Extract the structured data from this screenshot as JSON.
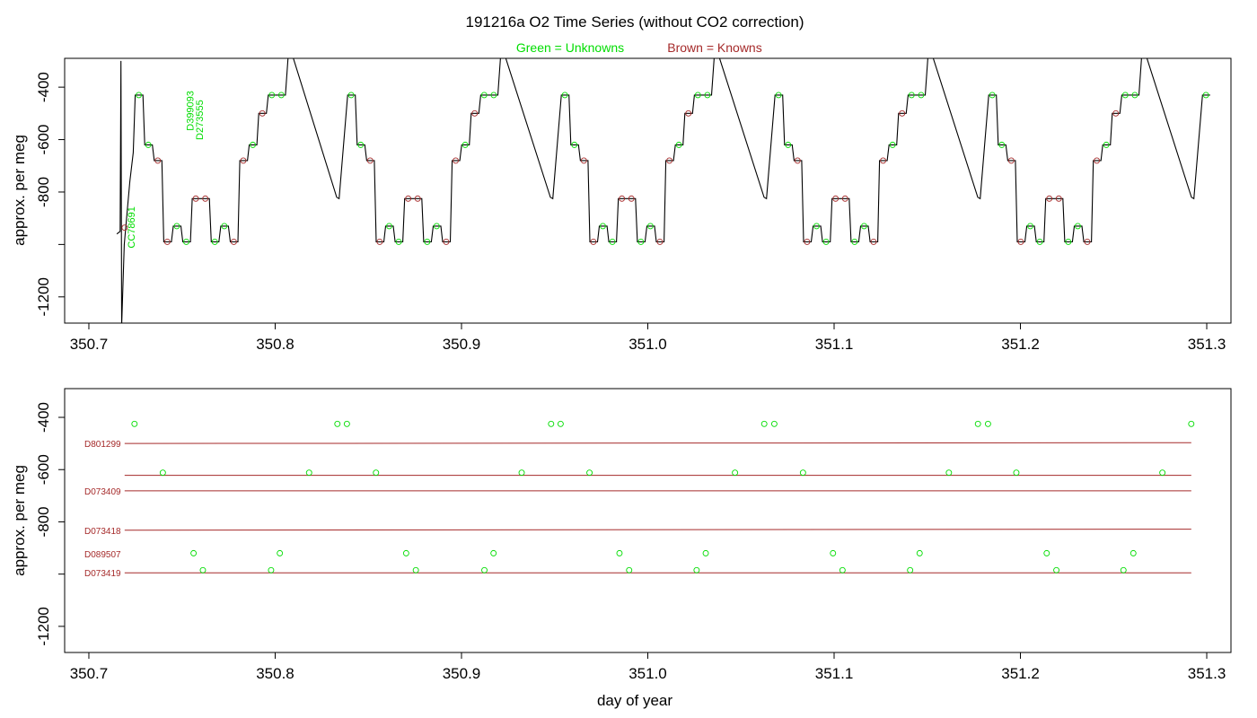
{
  "chart_data": [
    {
      "type": "line",
      "title": "191216a   O2 Time Series (without CO2 correction)",
      "legend_green": "Green = Unknowns",
      "legend_brown": "Brown = Knowns",
      "xlabel": "",
      "ylabel": "approx. per meg",
      "xlim": [
        350.687,
        351.313
      ],
      "ylim": [
        -1300,
        -290
      ],
      "y_reversed": true,
      "x_ticks": [
        "350.7",
        "350.8",
        "350.9",
        "351.0",
        "351.1",
        "351.2",
        "351.3"
      ],
      "y_ticks": [
        "-400",
        "-600",
        "-800",
        "-1000",
        "-1200"
      ],
      "y_tick_labels_shown": [
        "-400",
        "-600",
        "-800",
        "-1200"
      ],
      "colors": {
        "unknown": "#00dd00",
        "known": "#a52a2a",
        "trace": "#000000"
      },
      "annotations": [
        {
          "text": "CC78691",
          "x": 350.7245,
          "y": -935,
          "color": "green"
        },
        {
          "text": "D399093",
          "x": 350.7562,
          "y": -490,
          "color": "green"
        },
        {
          "text": "D273555",
          "x": 350.7612,
          "y": -525,
          "color": "green"
        }
      ],
      "cycle_start_x": [
        350.7245,
        350.8385,
        350.9532,
        351.0679,
        351.1826,
        351.2973
      ],
      "cycle_level_sequence": [
        {
          "level": -430,
          "role": "unknown"
        },
        {
          "level": -620,
          "role": "unknown"
        },
        {
          "level": -680,
          "role": "known"
        },
        {
          "level": -990,
          "role": "known"
        },
        {
          "level": -930,
          "role": "unknown"
        },
        {
          "level": -990,
          "role": "unknown"
        },
        {
          "level": -825,
          "role": "known"
        },
        {
          "level": -825,
          "role": "known"
        },
        {
          "level": -990,
          "role": "unknown"
        },
        {
          "level": -930,
          "role": "unknown"
        },
        {
          "level": -990,
          "role": "known"
        },
        {
          "level": -680,
          "role": "known"
        },
        {
          "level": -620,
          "role": "unknown"
        },
        {
          "level": -500,
          "role": "known"
        },
        {
          "level": -430,
          "role": "unknown"
        },
        {
          "level": -430,
          "role": "unknown"
        }
      ]
    },
    {
      "type": "scatter",
      "xlabel": "day of year",
      "ylabel": "approx. per meg",
      "xlim": [
        350.687,
        351.313
      ],
      "ylim": [
        -1300,
        -290
      ],
      "y_reversed": true,
      "x_ticks": [
        "350.7",
        "350.8",
        "350.9",
        "351.0",
        "351.1",
        "351.2",
        "351.3"
      ],
      "y_tick_labels_shown": [
        "-400",
        "-600",
        "-800",
        "-1200"
      ],
      "known_lines": [
        {
          "name": "D801299",
          "x_start": 350.7192,
          "x_end": 351.2917,
          "y_start": -500,
          "y_end": -497
        },
        {
          "name": "",
          "x_start": 350.7192,
          "x_end": 351.2917,
          "y_start": -622,
          "y_end": -622
        },
        {
          "name": "D073409",
          "x_start": 350.7192,
          "x_end": 351.2917,
          "y_start": -681,
          "y_end": -681
        },
        {
          "name": "D073418",
          "x_start": 350.7192,
          "x_end": 351.2917,
          "y_start": -832,
          "y_end": -828
        },
        {
          "name": "D073419",
          "x_start": 350.7192,
          "x_end": 351.2917,
          "y_start": -995,
          "y_end": -995
        }
      ],
      "extra_labels": [
        {
          "text": "D089507",
          "y": -922
        }
      ],
      "unknowns": {
        "x": [
          350.7245,
          350.7397,
          350.7562,
          350.7612,
          350.7978,
          350.8025,
          350.8182,
          350.8334,
          350.8385,
          350.8541,
          350.8703,
          350.8755,
          350.9123,
          350.9172,
          350.9323,
          350.9481,
          350.9532,
          350.9687,
          350.9848,
          350.99,
          351.0262,
          351.0311,
          351.0468,
          351.0625,
          351.0679,
          351.0833,
          351.0994,
          351.1045,
          351.1408,
          351.1459,
          351.1616,
          351.1772,
          351.1826,
          351.1978,
          351.2141,
          351.2193,
          351.2553,
          351.2606,
          351.2762,
          351.2917
        ],
        "y": [
          -425,
          -612,
          -920,
          -985,
          -985,
          -920,
          -612,
          -425,
          -425,
          -612,
          -920,
          -985,
          -985,
          -920,
          -612,
          -425,
          -425,
          -612,
          -920,
          -985,
          -985,
          -920,
          -612,
          -425,
          -425,
          -612,
          -920,
          -985,
          -985,
          -920,
          -612,
          -425,
          -425,
          -612,
          -920,
          -985,
          -985,
          -920,
          -612,
          -425
        ]
      }
    }
  ]
}
